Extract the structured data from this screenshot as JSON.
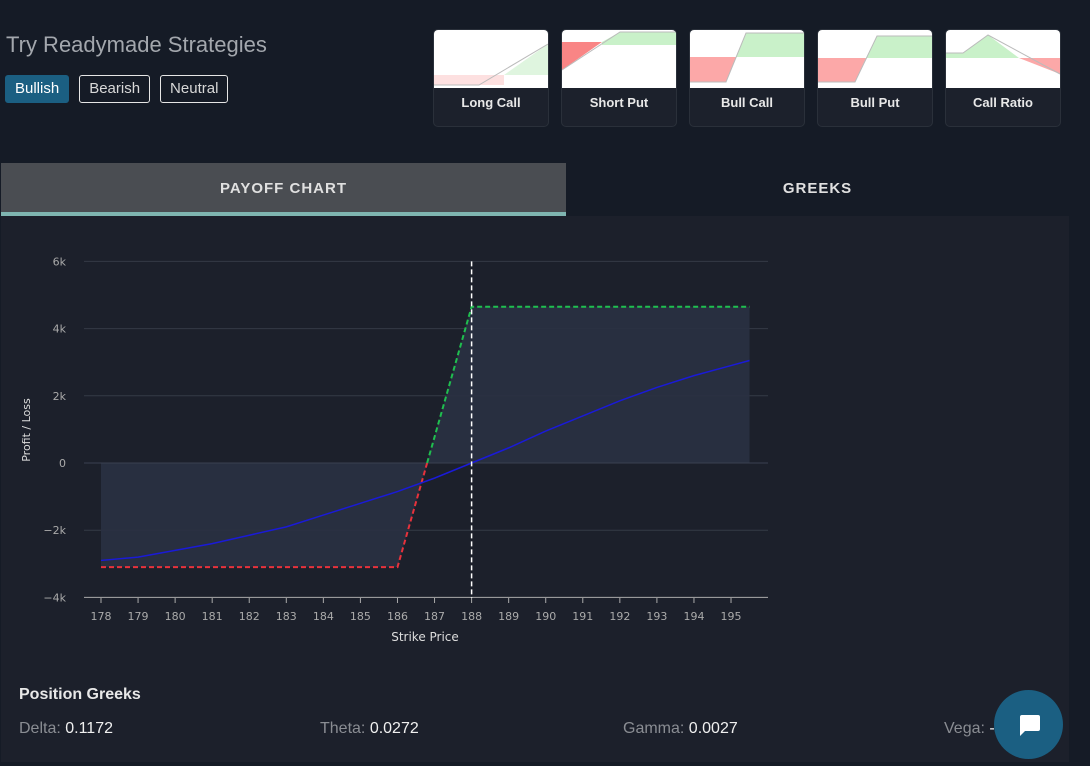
{
  "header": {
    "title": "Try Readymade Strategies",
    "filters": [
      {
        "label": "Bullish",
        "active": true
      },
      {
        "label": "Bearish",
        "active": false
      },
      {
        "label": "Neutral",
        "active": false
      }
    ]
  },
  "strategies": [
    {
      "label": "Long Call"
    },
    {
      "label": "Short Put"
    },
    {
      "label": "Bull Call"
    },
    {
      "label": "Bull Put"
    },
    {
      "label": "Call Ratio"
    }
  ],
  "tabs": [
    {
      "label": "PAYOFF CHART",
      "active": true
    },
    {
      "label": "GREEKS",
      "active": false
    }
  ],
  "chart_data": {
    "type": "line",
    "xlabel": "Strike Price",
    "ylabel": "Profit / Loss",
    "x_ticks": [
      178,
      179,
      180,
      181,
      182,
      183,
      184,
      185,
      186,
      187,
      188,
      189,
      190,
      191,
      192,
      193,
      194,
      195
    ],
    "y_ticks": [
      {
        "v": 6000,
        "l": "6k"
      },
      {
        "v": 4000,
        "l": "4k"
      },
      {
        "v": 2000,
        "l": "2k"
      },
      {
        "v": 0,
        "l": "0"
      },
      {
        "v": -2000,
        "l": "−2k"
      },
      {
        "v": -4000,
        "l": "−4k"
      }
    ],
    "xlim": [
      177.8,
      196.3
    ],
    "ylim": [
      -4000,
      6000
    ],
    "expiry_payoff": {
      "x": [
        178,
        186,
        188,
        195.5
      ],
      "y": [
        -3100,
        -3100,
        4650,
        4650
      ],
      "loss_color": "#e8323c",
      "profit_color": "#1fbf4f"
    },
    "current_payoff": {
      "x": [
        178,
        179,
        180,
        181,
        182,
        183,
        184,
        185,
        186,
        187,
        188,
        189,
        190,
        191,
        192,
        193,
        194,
        195,
        195.5
      ],
      "y": [
        -2900,
        -2800,
        -2600,
        -2400,
        -2150,
        -1900,
        -1550,
        -1200,
        -850,
        -450,
        0,
        450,
        950,
        1400,
        1850,
        2250,
        2600,
        2900,
        3050
      ],
      "color": "#1a1ad8"
    },
    "spot_line": 188,
    "grid": true
  },
  "greeks": {
    "title": "Position Greeks",
    "items": [
      {
        "label": "Delta:",
        "value": "0.1172"
      },
      {
        "label": "Theta:",
        "value": "0.0272"
      },
      {
        "label": "Gamma:",
        "value": "0.0027"
      },
      {
        "label": "Vega:",
        "value": "-"
      }
    ]
  }
}
